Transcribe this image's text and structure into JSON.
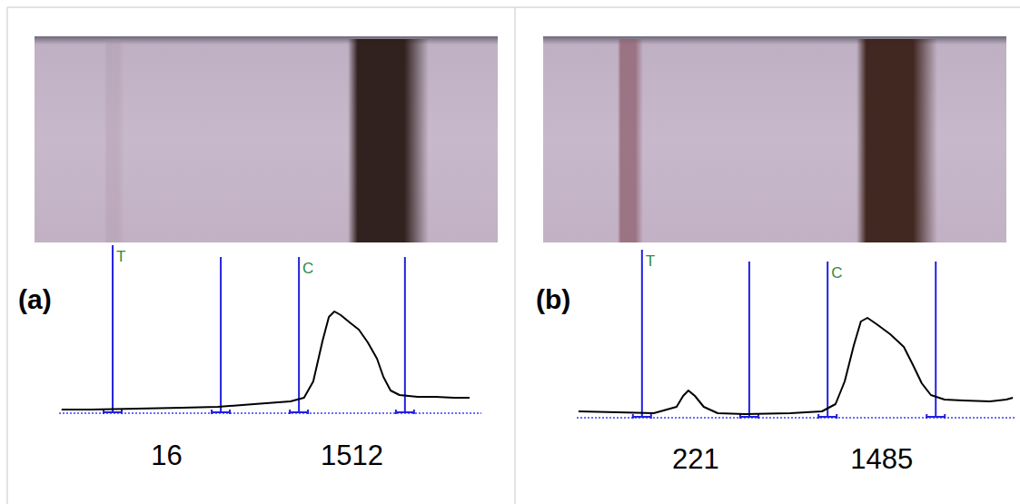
{
  "chart_data": [
    {
      "type": "line",
      "title": "(a)",
      "xlim": [
        0,
        100
      ],
      "ylim": [
        0,
        200
      ],
      "tick_labels": false,
      "grid": false,
      "color": "#000000",
      "x": [
        0.6,
        7.5,
        18.3,
        29,
        37.6,
        46.2,
        54.8,
        58,
        60.2,
        62.4,
        63.9,
        65.2,
        66.7,
        68.8,
        71,
        73.1,
        75.3,
        76.8,
        78.5,
        80.6,
        84.9,
        89.2,
        93.5,
        97.2
      ],
      "values": [
        4,
        4,
        5,
        6,
        7,
        10,
        13,
        17,
        35,
        80,
        106,
        112,
        108,
        100,
        92,
        78,
        60,
        40,
        25,
        20,
        18,
        18,
        17,
        17
      ],
      "regions": [
        {
          "label": "T",
          "start": 12.7,
          "end": 38.3,
          "area": 16
        },
        {
          "label": "C",
          "start": 56.8,
          "end": 81.9,
          "area": 1512
        }
      ]
    },
    {
      "type": "line",
      "title": "(b)",
      "xlim": [
        0,
        100
      ],
      "ylim": [
        0,
        200
      ],
      "tick_labels": false,
      "grid": false,
      "color": "#000000",
      "x": [
        0.4,
        9.3,
        17.6,
        22.8,
        24.3,
        25.5,
        27,
        29,
        32.2,
        38.4,
        48.8,
        56,
        59.1,
        61.2,
        63.3,
        64.9,
        66.4,
        68.5,
        71.6,
        74.7,
        76.8,
        78.8,
        80.9,
        84,
        88.2,
        94.4,
        98.1,
        99.6
      ],
      "values": [
        7,
        6,
        5,
        12,
        24,
        30,
        24,
        12,
        5,
        4,
        5,
        7,
        15,
        40,
        80,
        106,
        110,
        103,
        92,
        78,
        58,
        38,
        25,
        20,
        19,
        18,
        20,
        22
      ],
      "regions": [
        {
          "label": "T",
          "start": 14.9,
          "end": 39.4,
          "area": 221
        },
        {
          "label": "C",
          "start": 57.3,
          "end": 82.0,
          "area": 1485
        }
      ]
    }
  ]
}
